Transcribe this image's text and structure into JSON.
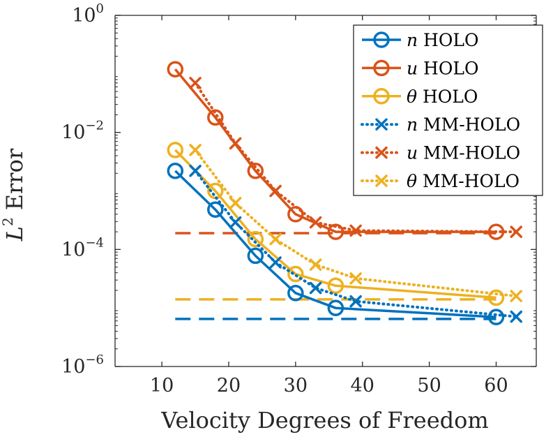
{
  "chart_data": {
    "type": "line",
    "xlabel": "Velocity Degrees of Freedom",
    "ylabel": "Error",
    "ylabel_prefix": "L",
    "ylabel_sup": "2",
    "xlim": [
      3,
      66
    ],
    "ylim": [
      1e-06,
      1
    ],
    "yscale": "log",
    "grid": false,
    "legend_position": "top-right",
    "xticks": [
      {
        "value": 10,
        "label": "10"
      },
      {
        "value": 20,
        "label": "20"
      },
      {
        "value": 30,
        "label": "30"
      },
      {
        "value": 40,
        "label": "40"
      },
      {
        "value": 50,
        "label": "50"
      },
      {
        "value": 60,
        "label": "60"
      }
    ],
    "yticks": [
      {
        "value": 1e-06,
        "base": "10",
        "exp": "−6"
      },
      {
        "value": 0.0001,
        "base": "10",
        "exp": "−4"
      },
      {
        "value": 0.01,
        "base": "10",
        "exp": "−2"
      },
      {
        "value": 1,
        "base": "10",
        "exp": "0"
      }
    ],
    "series": [
      {
        "name_var": "n",
        "name_text": "HOLO",
        "color": "#0072BD",
        "line": "solid",
        "marker": "circle",
        "x": [
          12,
          18,
          24,
          30,
          36,
          60
        ],
        "y": [
          0.0022,
          0.00048,
          7.8e-05,
          1.8e-05,
          1e-05,
          7e-06
        ]
      },
      {
        "name_var": "u",
        "name_text": "HOLO",
        "color": "#D95319",
        "line": "solid",
        "marker": "circle",
        "x": [
          12,
          18,
          24,
          30,
          36,
          60
        ],
        "y": [
          0.12,
          0.018,
          0.0022,
          0.0004,
          0.0002,
          0.0002
        ]
      },
      {
        "name_var": "θ",
        "name_text": "HOLO",
        "color": "#EDB120",
        "line": "solid",
        "marker": "circle",
        "x": [
          12,
          18,
          24,
          30,
          36,
          60
        ],
        "y": [
          0.005,
          0.001,
          0.00015,
          3.8e-05,
          2.4e-05,
          1.5e-05
        ]
      },
      {
        "name_var": "n",
        "name_text": "MM-HOLO",
        "color": "#0072BD",
        "line": "dotted",
        "marker": "x",
        "x": [
          15,
          21,
          27,
          33,
          39,
          63
        ],
        "y": [
          0.0022,
          0.00029,
          6e-05,
          2.2e-05,
          1.3e-05,
          7.1e-06
        ]
      },
      {
        "name_var": "u",
        "name_text": "MM-HOLO",
        "color": "#D95319",
        "line": "dotted",
        "marker": "x",
        "x": [
          15,
          21,
          27,
          33,
          39,
          63
        ],
        "y": [
          0.07,
          0.0065,
          0.001,
          0.00029,
          0.00021,
          0.0002
        ]
      },
      {
        "name_var": "θ",
        "name_text": "MM-HOLO",
        "color": "#EDB120",
        "line": "dotted",
        "marker": "x",
        "x": [
          15,
          21,
          27,
          33,
          39,
          63
        ],
        "y": [
          0.005,
          0.00062,
          0.00015,
          5.5e-05,
          3.2e-05,
          1.6e-05
        ]
      }
    ],
    "reference_lines": [
      {
        "color": "#D95319",
        "y": 0.00019,
        "x": [
          12,
          60
        ]
      },
      {
        "color": "#EDB120",
        "y": 1.4e-05,
        "x": [
          12,
          60
        ]
      },
      {
        "color": "#0072BD",
        "y": 6.5e-06,
        "x": [
          12,
          60
        ]
      }
    ]
  }
}
